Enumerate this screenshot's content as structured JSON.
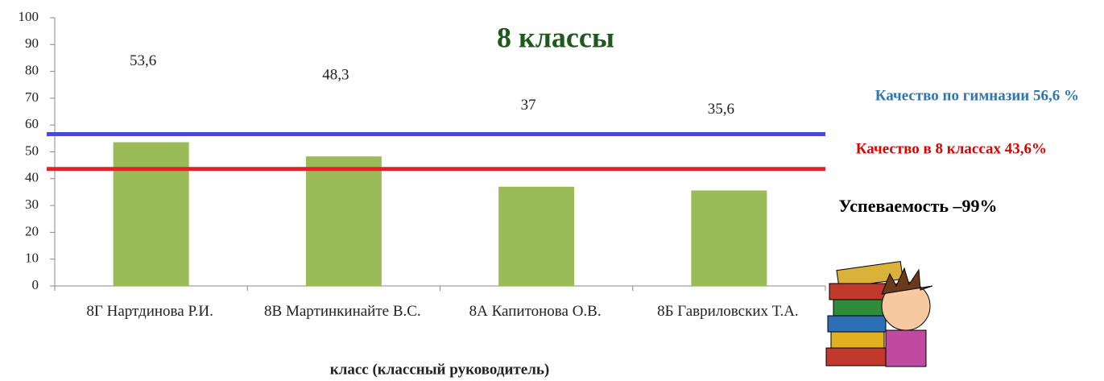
{
  "chart_data": {
    "type": "bar",
    "title": "8 классы",
    "categories": [
      "8Г Нартдинова Р.И.",
      "8В Мартинкинайте В.С.",
      "8А Капитонова О.В.",
      "8Б Гавриловских Т.А."
    ],
    "values": [
      53.6,
      48.3,
      37,
      35.6
    ],
    "value_labels": [
      "53,6",
      "48,3",
      "37",
      "35,6"
    ],
    "color": "#9bbb59",
    "ylim": [
      0,
      100
    ],
    "yticks": [
      0,
      10,
      20,
      30,
      40,
      50,
      60,
      70,
      80,
      90,
      100
    ],
    "x_label": "класс (классный  руководитель)",
    "reference_lines": [
      {
        "value": 56.6,
        "color": "#4a4ad0",
        "label": "Качество по гимназии  56,6 %",
        "label_color": "#2e75b6"
      },
      {
        "value": 43.6,
        "color": "#e8202a",
        "label": "Качество в 8 классах 43,6%",
        "label_color": "#e00000"
      }
    ],
    "annotation": "Успеваемость –99%"
  }
}
